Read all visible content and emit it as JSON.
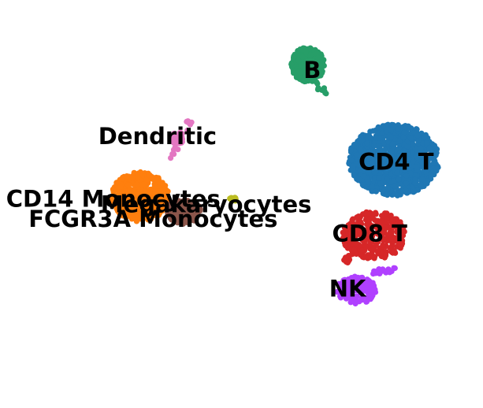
{
  "chart_data": {
    "type": "scatter",
    "title": "",
    "xlabel": "",
    "ylabel": "",
    "xlim": [
      -10,
      10
    ],
    "ylim": [
      -10,
      10
    ],
    "grid": false,
    "legend": "on data",
    "clusters": [
      {
        "name": "B",
        "color": "#279e68",
        "count": 320,
        "cx": 3.0,
        "cy": 7.6,
        "rx": 0.75,
        "ry": 0.95,
        "tail": {
          "x0": 3.3,
          "y0": 6.6,
          "x1": 3.9,
          "y1": 5.9,
          "n": 10
        }
      },
      {
        "name": "CD4 T",
        "color": "#1f77b4",
        "count": 1100,
        "cx": 6.9,
        "cy": 2.4,
        "rx": 2.05,
        "ry": 1.95
      },
      {
        "name": "CD8 T",
        "color": "#d62728",
        "count": 300,
        "cx": 6.0,
        "cy": -1.7,
        "rx": 1.45,
        "ry": 1.3,
        "tail": {
          "x0": 5.3,
          "y0": -2.1,
          "x1": 4.7,
          "y1": -3.2,
          "n": 40
        }
      },
      {
        "name": "NK",
        "color": "#b040ff",
        "count": 150,
        "cx": 5.2,
        "cy": -4.7,
        "rx": 0.9,
        "ry": 0.75,
        "tail": {
          "x0": 5.9,
          "y0": -3.7,
          "x1": 6.9,
          "y1": -3.6,
          "n": 20
        }
      },
      {
        "name": "CD14 Monocytes",
        "color": "#ff7f0e",
        "count": 480,
        "cx": -4.6,
        "cy": 0.4,
        "rx": 1.3,
        "ry": 1.35
      },
      {
        "name": "FCGR3A Monocytes",
        "color": "#8c564b",
        "count": 150,
        "cx": -2.6,
        "cy": -0.4,
        "rx": 0.75,
        "ry": 0.7
      },
      {
        "name": "Dendritic",
        "color": "#e377c2",
        "count": 30,
        "cx": -2.9,
        "cy": 3.6,
        "rx": 0.3,
        "ry": 0.35,
        "tail": {
          "x0": -3.1,
          "y0": 2.6,
          "x1": -2.3,
          "y1": 4.6,
          "n": 15
        }
      },
      {
        "name": "Megakaryocytes",
        "color": "#bcbd22",
        "count": 12,
        "cx": -0.4,
        "cy": 0.25,
        "rx": 0.18,
        "ry": 0.12
      }
    ],
    "labels": [
      {
        "text": "B",
        "x": 3.2,
        "y": 7.2
      },
      {
        "text": "Dendritic",
        "x": -3.8,
        "y": 3.6
      },
      {
        "text": "CD4 T",
        "x": 7.0,
        "y": 2.2
      },
      {
        "text": "CD14 Monocytes",
        "x": -5.8,
        "y": 0.2
      },
      {
        "text": "Megakaryocytes",
        "x": -1.6,
        "y": -0.1
      },
      {
        "text": "FCGR3A Monocytes",
        "x": -4.0,
        "y": -0.9
      },
      {
        "text": "CD8 T",
        "x": 5.8,
        "y": -1.7
      },
      {
        "text": "NK",
        "x": 4.8,
        "y": -4.7
      }
    ]
  }
}
